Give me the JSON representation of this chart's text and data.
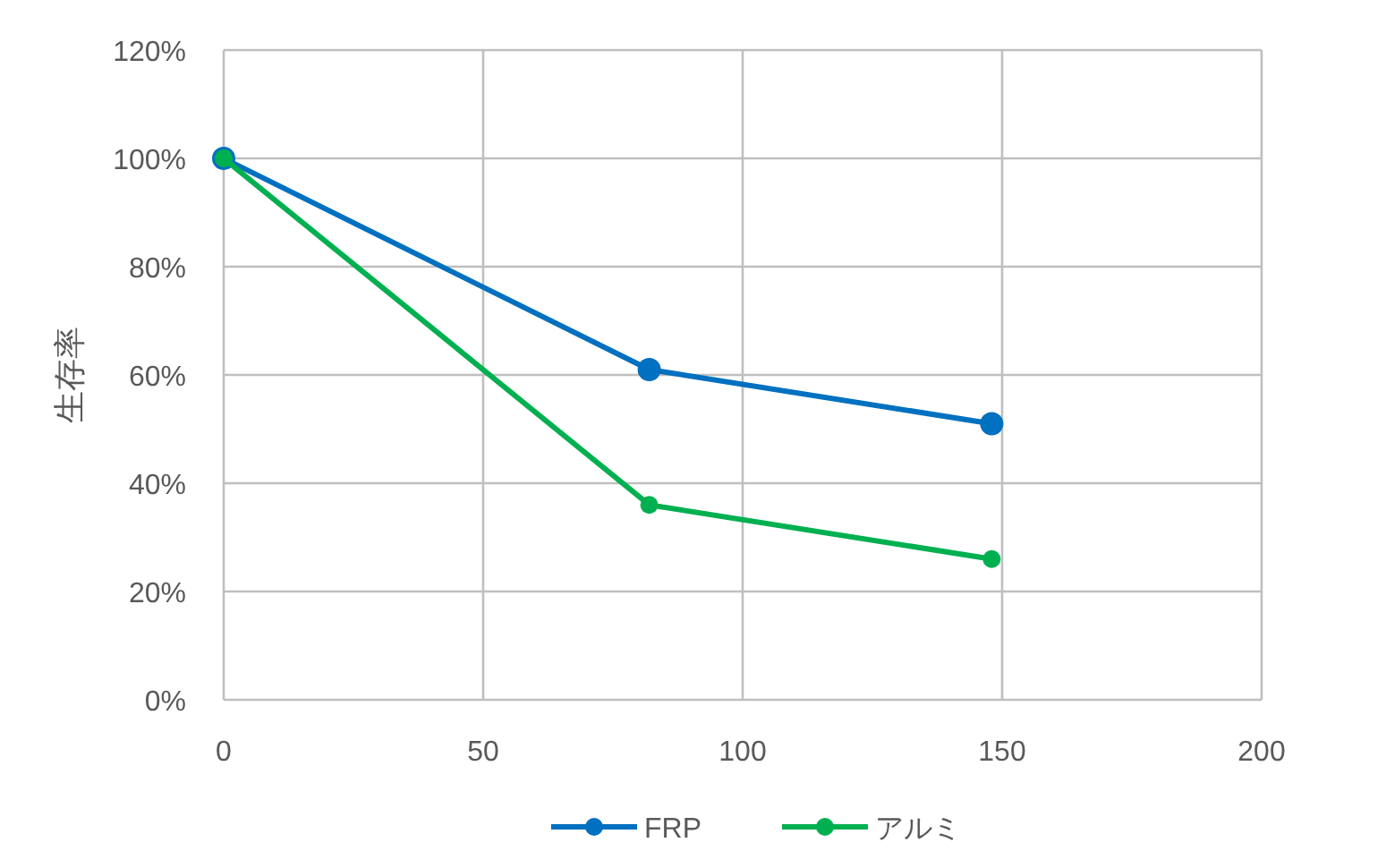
{
  "chart_data": {
    "type": "line",
    "ylabel": "生存率",
    "x": [
      0,
      82,
      148
    ],
    "series": [
      {
        "name": "FRP",
        "color": "#0070c0",
        "values": [
          100,
          61,
          51
        ]
      },
      {
        "name": "アルミ",
        "color": "#00b050",
        "values": [
          100,
          36,
          26
        ]
      }
    ],
    "xlim": [
      0,
      200
    ],
    "xticks": [
      0,
      50,
      100,
      150,
      200
    ],
    "ylim": [
      0,
      120
    ],
    "yticks": [
      {
        "value": 0,
        "label": "0%"
      },
      {
        "value": 20,
        "label": "20%"
      },
      {
        "value": 40,
        "label": "40%"
      },
      {
        "value": 60,
        "label": "60%"
      },
      {
        "value": 80,
        "label": "80%"
      },
      {
        "value": 100,
        "label": "100%"
      },
      {
        "value": 120,
        "label": "120%"
      }
    ],
    "grid": true,
    "legend": "bottom",
    "marker": "circle",
    "line_style": "solid"
  }
}
